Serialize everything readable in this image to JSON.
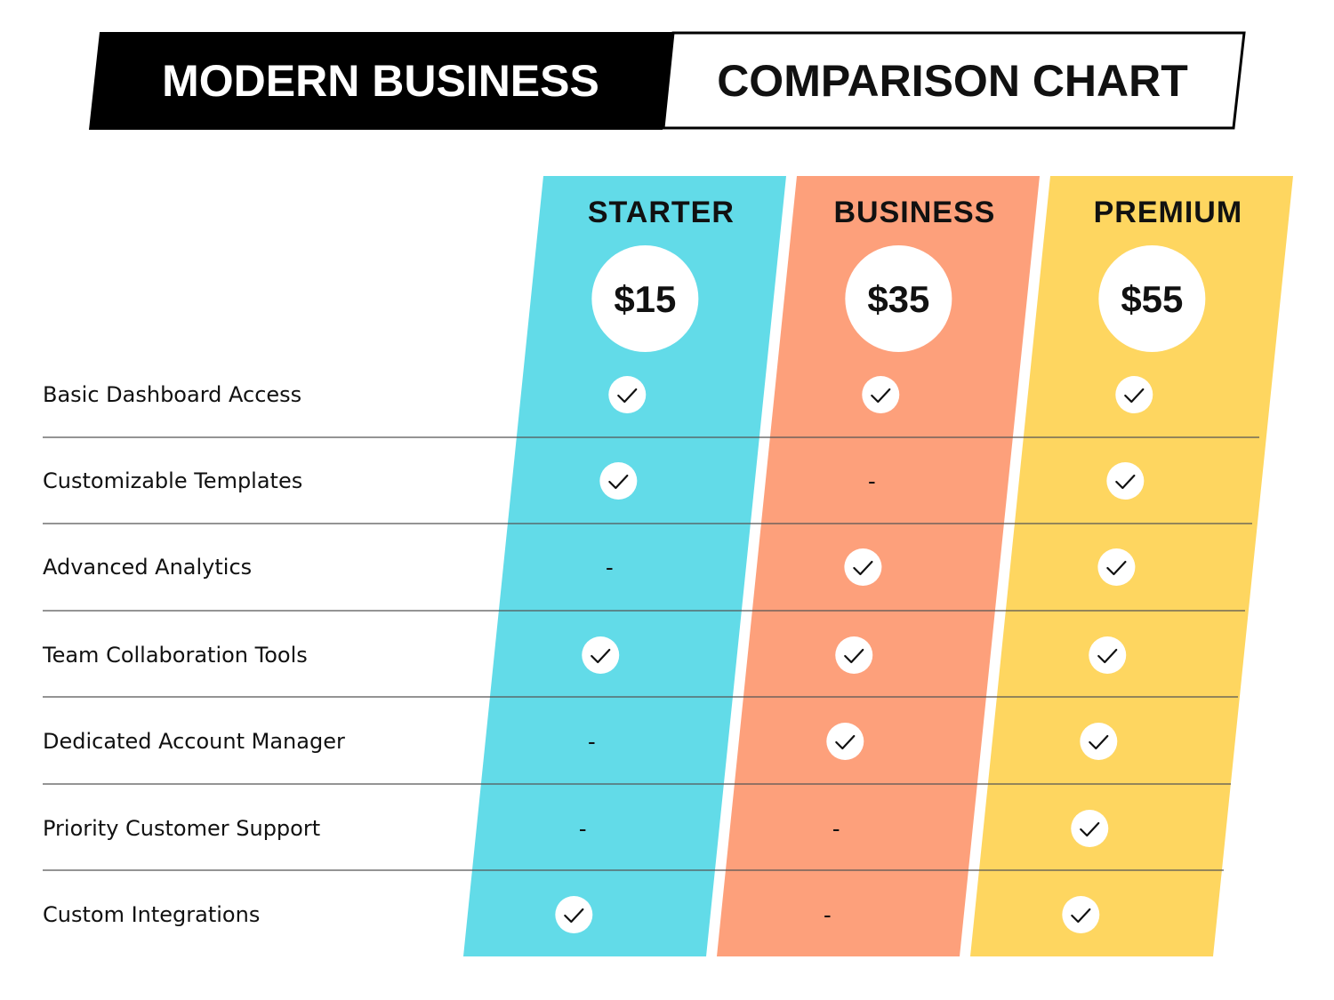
{
  "title": {
    "left": "MODERN BUSINESS",
    "right": "COMPARISON CHART"
  },
  "colors": {
    "starter": "#62dbe8",
    "business": "#fda07b",
    "premium": "#fed660",
    "banner_dark": "#000000",
    "text": "#111111",
    "divider": "#555555"
  },
  "chart_data": {
    "type": "table",
    "plans": [
      {
        "name": "STARTER",
        "price": "$15",
        "color": "#62dbe8"
      },
      {
        "name": "BUSINESS",
        "price": "$35",
        "color": "#fda07b"
      },
      {
        "name": "PREMIUM",
        "price": "$55",
        "color": "#fed660"
      }
    ],
    "features": [
      {
        "label": "Basic Dashboard Access",
        "values": [
          true,
          true,
          true
        ]
      },
      {
        "label": "Customizable Templates",
        "values": [
          true,
          false,
          true
        ]
      },
      {
        "label": "Advanced Analytics",
        "values": [
          false,
          true,
          true
        ]
      },
      {
        "label": "Team Collaboration Tools",
        "values": [
          true,
          true,
          true
        ]
      },
      {
        "label": "Dedicated Account Manager",
        "values": [
          false,
          true,
          true
        ]
      },
      {
        "label": "Priority Customer Support",
        "values": [
          false,
          false,
          true
        ]
      },
      {
        "label": "Custom Integrations",
        "values": [
          true,
          false,
          true
        ]
      }
    ],
    "unavailable_mark": "-"
  }
}
